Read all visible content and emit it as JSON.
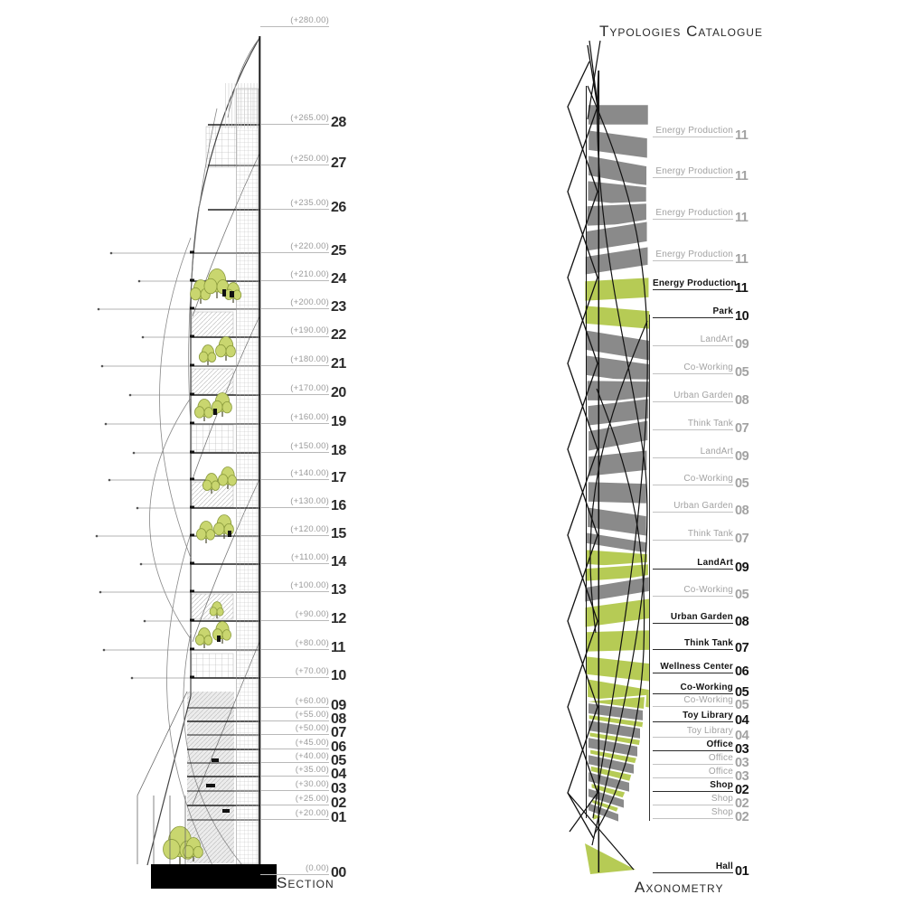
{
  "section": {
    "title": "Section",
    "floors": [
      {
        "elevation": "(+280.00)",
        "number": ""
      },
      {
        "elevation": "(+265.00)",
        "number": "28"
      },
      {
        "elevation": "(+250.00)",
        "number": "27"
      },
      {
        "elevation": "(+235.00)",
        "number": "26"
      },
      {
        "elevation": "(+220.00)",
        "number": "25"
      },
      {
        "elevation": "(+210.00)",
        "number": "24"
      },
      {
        "elevation": "(+200.00)",
        "number": "23"
      },
      {
        "elevation": "(+190.00)",
        "number": "22"
      },
      {
        "elevation": "(+180.00)",
        "number": "21"
      },
      {
        "elevation": "(+170.00)",
        "number": "20"
      },
      {
        "elevation": "(+160.00)",
        "number": "19"
      },
      {
        "elevation": "(+150.00)",
        "number": "18"
      },
      {
        "elevation": "(+140.00)",
        "number": "17"
      },
      {
        "elevation": "(+130.00)",
        "number": "16"
      },
      {
        "elevation": "(+120.00)",
        "number": "15"
      },
      {
        "elevation": "(+110.00)",
        "number": "14"
      },
      {
        "elevation": "(+100.00)",
        "number": "13"
      },
      {
        "elevation": "(+90.00)",
        "number": "12"
      },
      {
        "elevation": "(+80.00)",
        "number": "11"
      },
      {
        "elevation": "(+70.00)",
        "number": "10"
      },
      {
        "elevation": "(+60.00)",
        "number": "09"
      },
      {
        "elevation": "(+55.00)",
        "number": "08"
      },
      {
        "elevation": "(+50.00)",
        "number": "07"
      },
      {
        "elevation": "(+45.00)",
        "number": "06"
      },
      {
        "elevation": "(+40.00)",
        "number": "05"
      },
      {
        "elevation": "(+35.00)",
        "number": "04"
      },
      {
        "elevation": "(+30.00)",
        "number": "03"
      },
      {
        "elevation": "(+25.00)",
        "number": "02"
      },
      {
        "elevation": "(+20.00)",
        "number": "01"
      },
      {
        "elevation": "(0.00)",
        "number": "00"
      }
    ]
  },
  "axonometry": {
    "title": "Axonometry",
    "catalogue_title": "Typologies Catalogue",
    "typologies": [
      {
        "label": "Energy Production",
        "number": "11",
        "active": false
      },
      {
        "label": "Energy Production",
        "number": "11",
        "active": false
      },
      {
        "label": "Energy Production",
        "number": "11",
        "active": false
      },
      {
        "label": "Energy Production",
        "number": "11",
        "active": false
      },
      {
        "label": "Energy Production",
        "number": "11",
        "active": true
      },
      {
        "label": "Park",
        "number": "10",
        "active": true
      },
      {
        "label": "LandArt",
        "number": "09",
        "active": false
      },
      {
        "label": "Co-Working",
        "number": "05",
        "active": false
      },
      {
        "label": "Urban Garden",
        "number": "08",
        "active": false
      },
      {
        "label": "Think Tank",
        "number": "07",
        "active": false
      },
      {
        "label": "LandArt",
        "number": "09",
        "active": false
      },
      {
        "label": "Co-Working",
        "number": "05",
        "active": false
      },
      {
        "label": "Urban Garden",
        "number": "08",
        "active": false
      },
      {
        "label": "Think Tank",
        "number": "07",
        "active": false
      },
      {
        "label": "LandArt",
        "number": "09",
        "active": true
      },
      {
        "label": "Co-Working",
        "number": "05",
        "active": false
      },
      {
        "label": "Urban Garden",
        "number": "08",
        "active": true
      },
      {
        "label": "Think Tank",
        "number": "07",
        "active": true
      },
      {
        "label": "Wellness Center",
        "number": "06",
        "active": true
      },
      {
        "label": "Co-Working",
        "number": "05",
        "active": true
      },
      {
        "label": "Co-Working",
        "number": "05",
        "active": false
      },
      {
        "label": "Toy Library",
        "number": "04",
        "active": true
      },
      {
        "label": "Toy Library",
        "number": "04",
        "active": false
      },
      {
        "label": "Office",
        "number": "03",
        "active": true
      },
      {
        "label": "Office",
        "number": "03",
        "active": false
      },
      {
        "label": "Office",
        "number": "03",
        "active": false
      },
      {
        "label": "Shop",
        "number": "02",
        "active": true
      },
      {
        "label": "Shop",
        "number": "02",
        "active": false
      },
      {
        "label": "Shop",
        "number": "02",
        "active": false
      },
      {
        "label": "Hall",
        "number": "01",
        "active": true
      }
    ]
  },
  "colors": {
    "accent_green": "#b6cb55",
    "plate_gray": "#8a8a8a",
    "active_text": "#141414",
    "inactive_text": "#a2a2a2"
  }
}
